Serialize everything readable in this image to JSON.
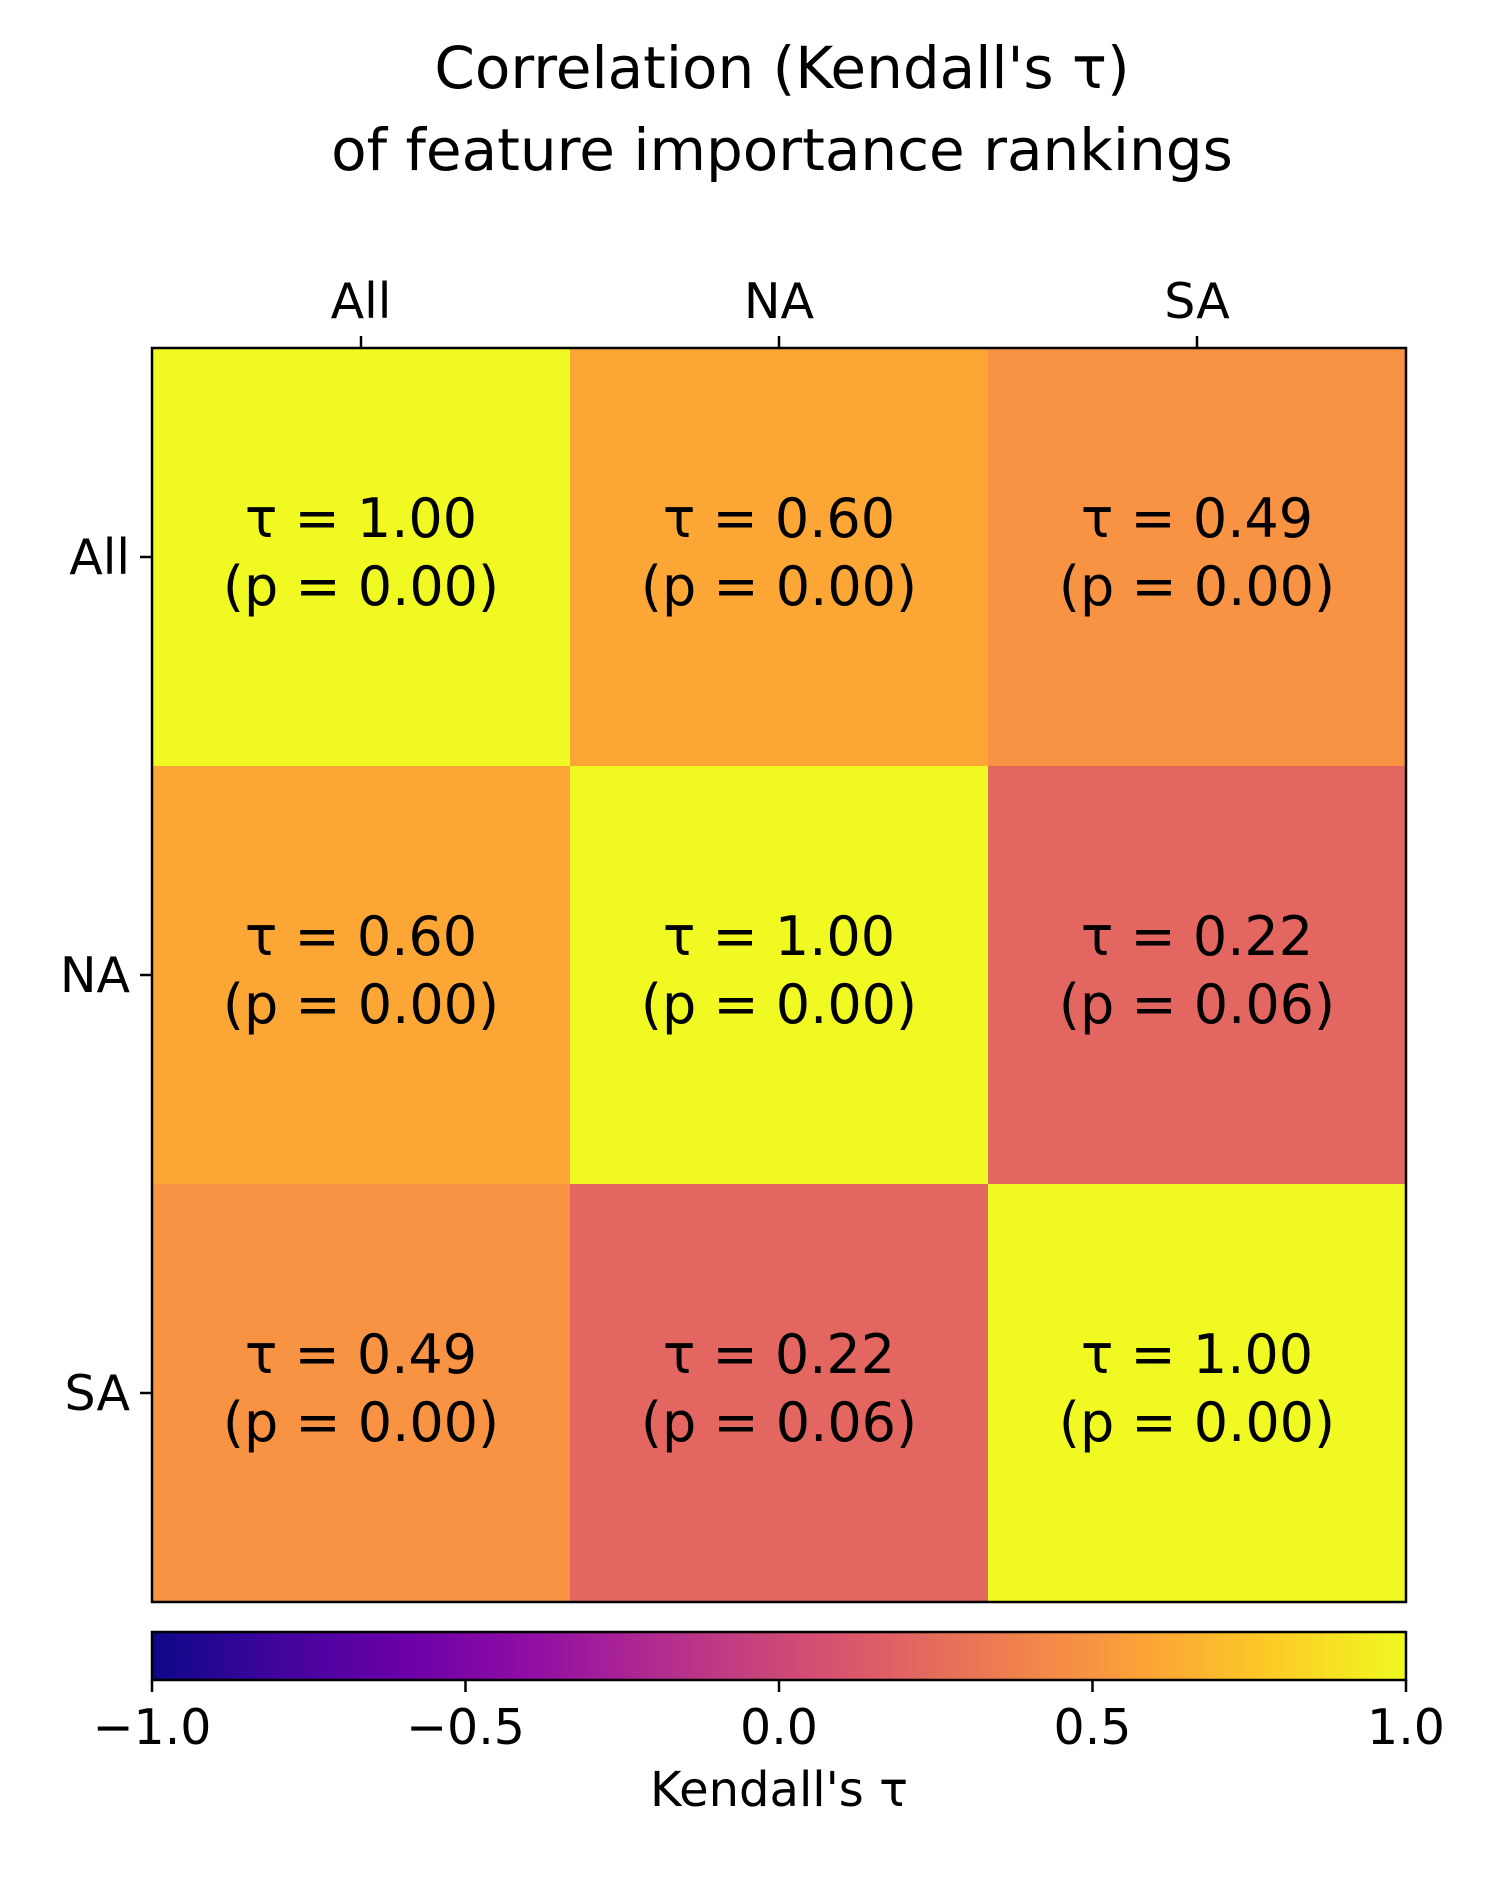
{
  "chart_data": {
    "type": "heatmap",
    "title": [
      "Correlation (Kendall's τ)",
      "of feature importance rankings"
    ],
    "row_labels": [
      "All",
      "NA",
      "SA"
    ],
    "col_labels": [
      "All",
      "NA",
      "SA"
    ],
    "tau": [
      [
        1.0,
        0.6,
        0.49
      ],
      [
        0.6,
        1.0,
        0.22
      ],
      [
        0.49,
        0.22,
        1.0
      ]
    ],
    "p": [
      [
        0.0,
        0.0,
        0.0
      ],
      [
        0.0,
        0.0,
        0.06
      ],
      [
        0.0,
        0.06,
        0.0
      ]
    ],
    "tau_text": [
      [
        "τ = 1.00",
        "τ = 0.60",
        "τ = 0.49"
      ],
      [
        "τ = 0.60",
        "τ = 1.00",
        "τ = 0.22"
      ],
      [
        "τ = 0.49",
        "τ = 0.22",
        "τ = 1.00"
      ]
    ],
    "p_text": [
      [
        "(p = 0.00)",
        "(p = 0.00)",
        "(p = 0.00)"
      ],
      [
        "(p = 0.00)",
        "(p = 0.00)",
        "(p = 0.06)"
      ],
      [
        "(p = 0.00)",
        "(p = 0.06)",
        "(p = 0.00)"
      ]
    ],
    "colormap": "plasma",
    "vmin": -1.0,
    "vmax": 1.0,
    "colorbar": {
      "label": "Kendall's τ",
      "orientation": "horizontal",
      "placement": "bottom",
      "ticks": [
        -1.0,
        -0.5,
        0.0,
        0.5,
        1.0
      ],
      "tick_labels": [
        "−1.0",
        "−0.5",
        "0.0",
        "0.5",
        "1.0"
      ]
    },
    "x_ticks_position": "top",
    "grid": false
  }
}
